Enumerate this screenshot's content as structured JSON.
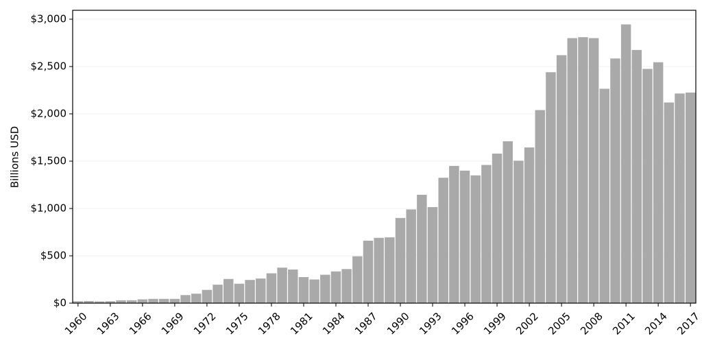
{
  "chart_data": {
    "type": "bar",
    "y_label": "Billions USD",
    "categories": [
      "1960",
      null,
      null,
      "1963",
      null,
      null,
      "1966",
      null,
      null,
      "1969",
      null,
      null,
      "1972",
      null,
      null,
      "1975",
      null,
      null,
      "1978",
      null,
      null,
      "1981",
      null,
      null,
      "1984",
      null,
      null,
      "1987",
      null,
      null,
      "1990",
      null,
      null,
      "1993",
      null,
      null,
      "1996",
      null,
      null,
      "1999",
      null,
      null,
      "2002",
      null,
      null,
      "2005",
      null,
      null,
      "2008",
      null,
      null,
      "2011",
      null,
      null,
      "2014",
      null,
      null,
      "2017"
    ],
    "values": [
      20,
      22,
      18,
      20,
      30,
      30,
      40,
      45,
      45,
      45,
      85,
      100,
      140,
      195,
      255,
      205,
      245,
      260,
      315,
      375,
      355,
      275,
      250,
      300,
      335,
      360,
      495,
      660,
      690,
      695,
      900,
      990,
      1145,
      1015,
      1325,
      1450,
      1400,
      1350,
      1460,
      1580,
      1710,
      1505,
      1645,
      2040,
      2440,
      2620,
      2800,
      2810,
      2800,
      2265,
      2585,
      2945,
      2675,
      2475,
      2545,
      2120,
      2215,
      2225
    ],
    "color": "#a9a9a9",
    "ylim": [
      0,
      3000
    ],
    "yticks": [
      {
        "value": 0,
        "label": "$0"
      },
      {
        "value": 500,
        "label": "$500"
      },
      {
        "value": 1000,
        "label": "$1,000"
      },
      {
        "value": 1500,
        "label": "$1,500"
      },
      {
        "value": 2000,
        "label": "$2,000"
      },
      {
        "value": 2500,
        "label": "$2,500"
      },
      {
        "value": 3000,
        "label": "$3,000"
      }
    ],
    "grid": true
  }
}
